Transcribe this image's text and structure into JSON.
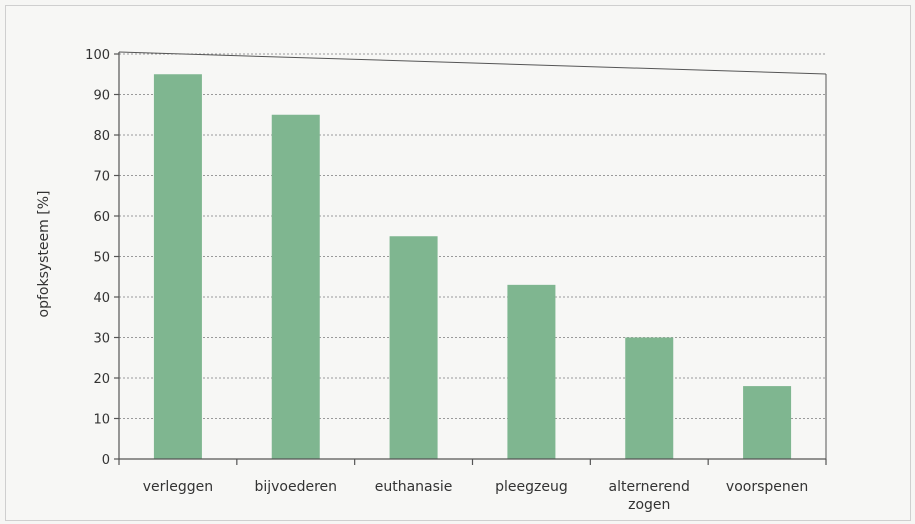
{
  "chart_data": {
    "type": "bar",
    "categories": [
      "verleggen",
      "bijvoederen",
      "euthanasie",
      "pleegzeug",
      "alternerend zogen",
      "voorspenen"
    ],
    "category_lines": [
      [
        "verleggen"
      ],
      [
        "bijvoederen"
      ],
      [
        "euthanasie"
      ],
      [
        "pleegzeug"
      ],
      [
        "alternerend",
        "zogen"
      ],
      [
        "voorspenen"
      ]
    ],
    "values": [
      95,
      85,
      55,
      43,
      30,
      18
    ],
    "ylabel": "opfoksysteem [%]",
    "xlabel": "",
    "ylim": [
      0,
      100
    ],
    "yticks": [
      0,
      10,
      20,
      30,
      40,
      50,
      60,
      70,
      80,
      90,
      100
    ],
    "grid": true,
    "bar_color": "#7fb690"
  }
}
